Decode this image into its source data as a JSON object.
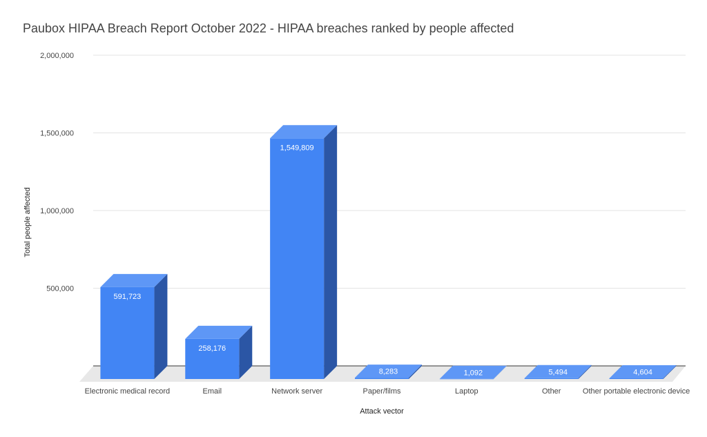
{
  "chart_data": {
    "type": "bar",
    "title": "Paubox HIPAA Breach Report October 2022 - HIPAA breaches ranked by people affected",
    "xlabel": "Attack vector",
    "ylabel": "Total people affected",
    "categories": [
      "Electronic medical record",
      "Email",
      "Network server",
      "Paper/films",
      "Laptop",
      "Other",
      "Other portable electronic device"
    ],
    "values": [
      591723,
      258176,
      1549809,
      8283,
      1092,
      5494,
      4604
    ],
    "data_labels": [
      "591,723",
      "258,176",
      "1,549,809",
      "8,283",
      "1,092",
      "5,494",
      "4,604"
    ],
    "ylim": [
      0,
      2000000
    ],
    "y_ticks": [
      {
        "value": 500000,
        "label": "500,000"
      },
      {
        "value": 1000000,
        "label": "1,000,000"
      },
      {
        "value": 1500000,
        "label": "1,500,000"
      },
      {
        "value": 2000000,
        "label": "2,000,000"
      }
    ],
    "grid": true,
    "style": "3d",
    "colors": {
      "front": "#4285f4",
      "top": "#5e97f6",
      "side": "#2b56a5",
      "floor": "#e8e8e8",
      "grid": "#e3e3e3",
      "baseline": "#333333"
    }
  }
}
